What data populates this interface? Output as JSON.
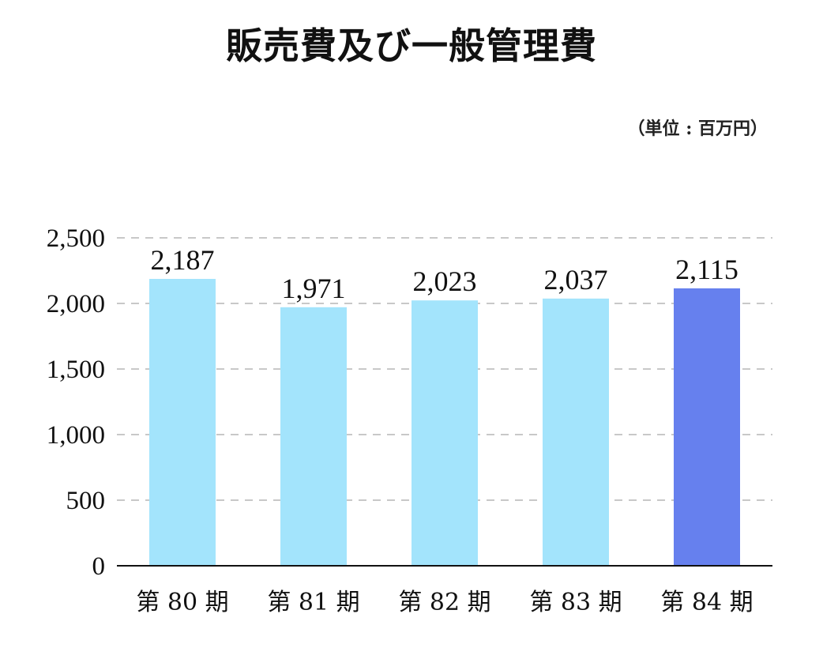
{
  "chart_data": {
    "type": "bar",
    "title": "販売費及び一般管理費",
    "unit": "（単位 : 百万円）",
    "categories": [
      "第 80 期",
      "第 81 期",
      "第 82 期",
      "第 83 期",
      "第 84 期"
    ],
    "values": [
      2187,
      1971,
      2023,
      2037,
      2115
    ],
    "value_labels": [
      "2,187",
      "1,971",
      "2,023",
      "2,037",
      "2,115"
    ],
    "yticks": [
      0,
      500,
      1000,
      1500,
      2000,
      2500
    ],
    "ytick_labels": [
      "0",
      "500",
      "1,000",
      "1,500",
      "2,000",
      "2,500"
    ],
    "ylim": [
      0,
      2500
    ],
    "grid": true,
    "colors": {
      "bar": "#a3e4fc",
      "highlight_bar": "#6680ee",
      "grid": "#c8c8c8",
      "axis": "#111111"
    },
    "highlight_index": 4
  }
}
